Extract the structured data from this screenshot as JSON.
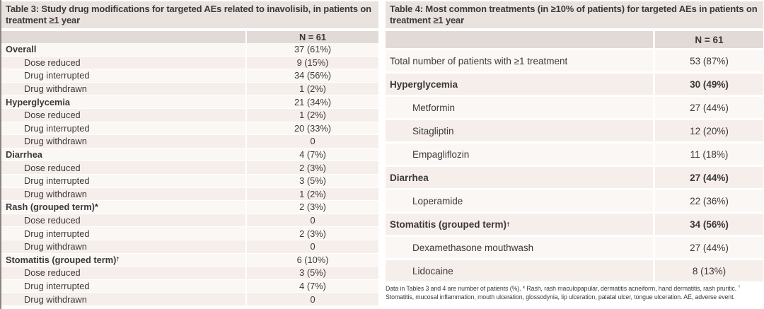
{
  "colors": {
    "title_band": "#e9e2df",
    "header_band": "#e2dad7",
    "row_light": "#fbf7f4",
    "row_pink": "#f6eeea",
    "divider": "#ffffff",
    "text": "#3b3938",
    "edge_line": "#8a8480"
  },
  "table3": {
    "title": "Table 3: Study drug modifications for targeted AEs related to inavolisib, in patients on treatment ≥1 year",
    "column_header": "N = 61",
    "rows": [
      {
        "label": "Overall",
        "value": "37 (61%)",
        "bold_label": true
      },
      {
        "label": "Dose reduced",
        "value": "9 (15%)",
        "indent": true
      },
      {
        "label": "Drug interrupted",
        "value": "34 (56%)",
        "indent": true
      },
      {
        "label": "Drug withdrawn",
        "value": "1 (2%)",
        "indent": true
      },
      {
        "label": "Hyperglycemia",
        "value": "21 (34%)",
        "bold_label": true
      },
      {
        "label": "Dose reduced",
        "value": "1 (2%)",
        "indent": true
      },
      {
        "label": "Drug interrupted",
        "value": "20 (33%)",
        "indent": true
      },
      {
        "label": "Drug withdrawn",
        "value": "0",
        "indent": true
      },
      {
        "label": "Diarrhea",
        "value": "4 (7%)",
        "bold_label": true
      },
      {
        "label": "Dose reduced",
        "value": "2 (3%)",
        "indent": true
      },
      {
        "label": "Drug interrupted",
        "value": "3 (5%)",
        "indent": true
      },
      {
        "label": "Drug withdrawn",
        "value": "1 (2%)",
        "indent": true
      },
      {
        "label": "Rash (grouped term)*",
        "value": "2 (3%)",
        "bold_label": true
      },
      {
        "label": "Dose reduced",
        "value": "0",
        "indent": true
      },
      {
        "label": "Drug interrupted",
        "value": "2 (3%)",
        "indent": true
      },
      {
        "label": "Drug withdrawn",
        "value": "0",
        "indent": true
      },
      {
        "label": "Stomatitis (grouped term)",
        "sup": "†",
        "value": "6 (10%)",
        "bold_label": true
      },
      {
        "label": "Dose reduced",
        "value": "3 (5%)",
        "indent": true
      },
      {
        "label": "Drug interrupted",
        "value": "4 (7%)",
        "indent": true
      },
      {
        "label": "Drug withdrawn",
        "value": "0",
        "indent": true
      }
    ]
  },
  "table4": {
    "title": "Table 4: Most common treatments (in ≥10% of patients) for targeted AEs in patients on treatment ≥1 year",
    "column_header": "N = 61",
    "rows": [
      {
        "label": "Total number of patients with ≥1 treatment",
        "value": "53 (87%)"
      },
      {
        "label": "Hyperglycemia",
        "value": "30 (49%)",
        "bold_label": true,
        "bold_value": true
      },
      {
        "label": "Metformin",
        "value": "27 (44%)",
        "indent": true
      },
      {
        "label": "Sitagliptin",
        "value": "12 (20%)",
        "indent": true
      },
      {
        "label": "Empagliflozin",
        "value": "11 (18%)",
        "indent": true
      },
      {
        "label": "Diarrhea",
        "value": "27 (44%)",
        "bold_label": true,
        "bold_value": true
      },
      {
        "label": "Loperamide",
        "value": "22 (36%)",
        "indent": true
      },
      {
        "label": "Stomatitis (grouped term)",
        "sup": "†",
        "value": "34 (56%)",
        "bold_label": true,
        "bold_value": true
      },
      {
        "label": "Dexamethasone mouthwash",
        "value": "27 (44%)",
        "indent": true
      },
      {
        "label": "Lidocaine",
        "value": "8 (13%)",
        "indent": true
      }
    ],
    "footnote": {
      "part1": "Data in Tables 3 and 4 are number of patients (%). * Rash, rash maculopapular, dermatitis acneiform, hand dermatitis, rash pruritic. ",
      "dagger": "†",
      "part2": " Stomatitis, mucosal inflammation, mouth ulceration, glossodynia, lip ulceration, palatal ulcer, tongue ulceration. AE, adverse event."
    }
  }
}
